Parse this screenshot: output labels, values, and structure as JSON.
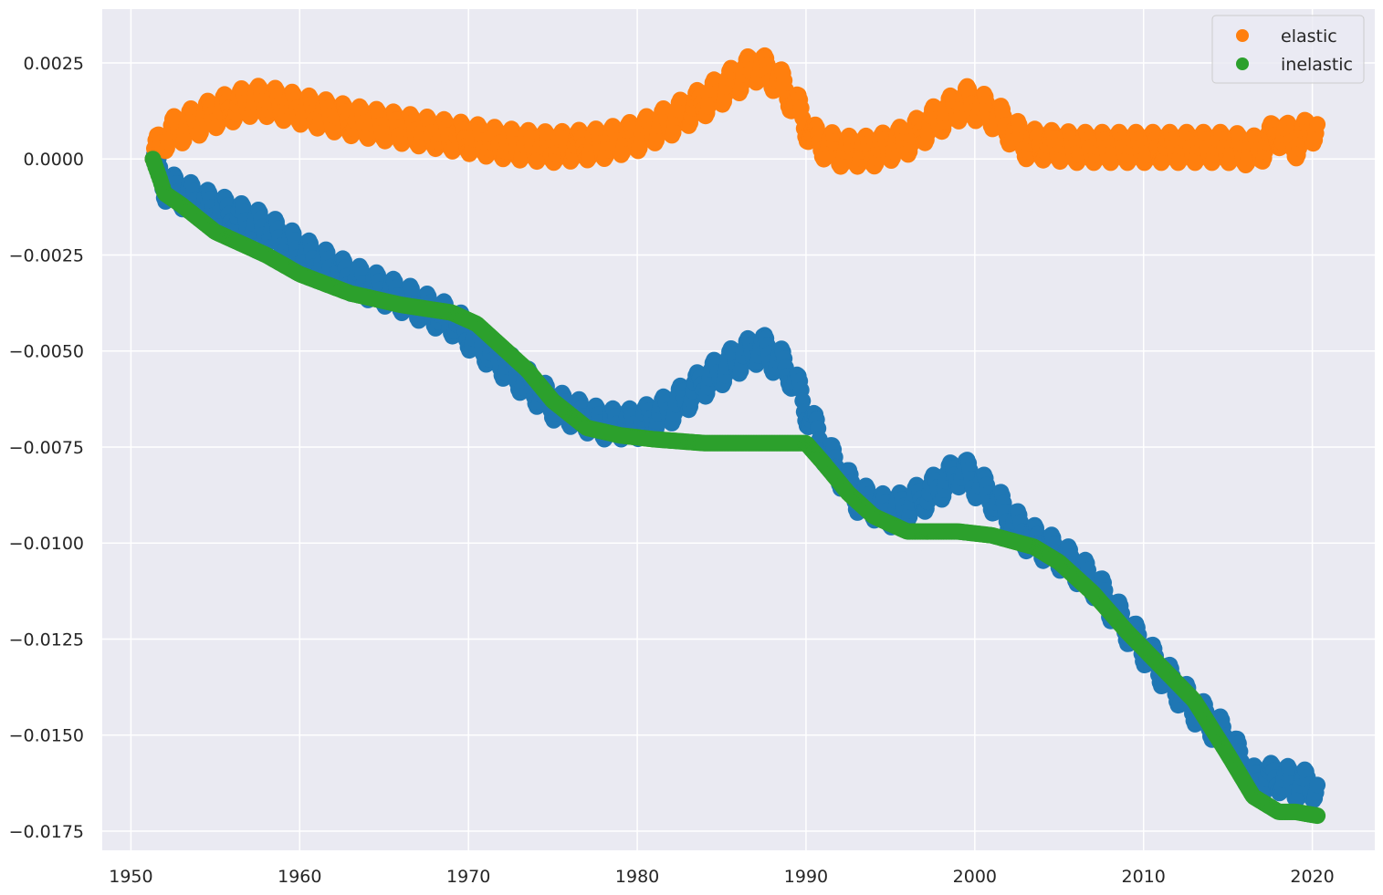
{
  "chart_data": {
    "type": "scatter",
    "title": "",
    "xlabel": "",
    "ylabel": "",
    "xlim": [
      1948.3,
      2023.7
    ],
    "ylim": [
      -0.018,
      0.0039
    ],
    "x_ticks": [
      "1950",
      "1960",
      "1970",
      "1980",
      "1990",
      "2000",
      "2010",
      "2020"
    ],
    "y_ticks": [
      "0.0025",
      "0.0000",
      "−0.0025",
      "−0.0050",
      "−0.0075",
      "−0.0100",
      "−0.0125",
      "−0.0150",
      "−0.0175"
    ],
    "y_tick_values": [
      0.0025,
      0.0,
      -0.0025,
      -0.005,
      -0.0075,
      -0.01,
      -0.0125,
      -0.015,
      -0.0175
    ],
    "x_tick_values": [
      1950,
      1960,
      1970,
      1980,
      1990,
      2000,
      2010,
      2020
    ],
    "grid": true,
    "background": "#eaeaf2",
    "legend_position": "top-right",
    "seasonal_amplitude": 0.0008,
    "series": [
      {
        "name": "",
        "color": "#1f77b4",
        "x": [
          1951.3,
          1952,
          1955,
          1958,
          1960,
          1963,
          1966,
          1969,
          1972,
          1975,
          1978,
          1980,
          1982,
          1984,
          1986,
          1987.3,
          1989,
          1991,
          1993,
          1995,
          1997,
          1999.2,
          2001,
          2003,
          2005,
          2007,
          2009,
          2011,
          2013,
          2015,
          2016.5,
          2018,
          2019,
          2020.3
        ],
        "y": [
          0.0,
          -0.0007,
          -0.0013,
          -0.0018,
          -0.0024,
          -0.0031,
          -0.0036,
          -0.0042,
          -0.0053,
          -0.0064,
          -0.0069,
          -0.0069,
          -0.0065,
          -0.0058,
          -0.0052,
          -0.0049,
          -0.0055,
          -0.0075,
          -0.0088,
          -0.0092,
          -0.0088,
          -0.0081,
          -0.0088,
          -0.0098,
          -0.0103,
          -0.011,
          -0.0122,
          -0.0133,
          -0.0143,
          -0.0151,
          -0.0162,
          -0.0161,
          -0.0163,
          -0.0163
        ]
      },
      {
        "name": "elastic",
        "color": "#ff7f0e",
        "x": [
          1951.3,
          1952,
          1953,
          1955,
          1957,
          1958,
          1960,
          1963,
          1966,
          1969,
          1972,
          1975,
          1978,
          1980,
          1982,
          1984,
          1986,
          1987,
          1988,
          1989,
          1990.5,
          1992,
          1994,
          1996,
          1998,
          1999.5,
          2001,
          2003,
          2006,
          2009,
          2012,
          2015,
          2016.7,
          2018,
          2019,
          2020.3
        ],
        "y": [
          0.0,
          0.0006,
          0.0008,
          0.0012,
          0.0015,
          0.0015,
          0.0013,
          0.001,
          0.0008,
          0.0006,
          0.0004,
          0.0003,
          0.0004,
          0.0006,
          0.001,
          0.0015,
          0.0021,
          0.0024,
          0.0022,
          0.0017,
          0.0005,
          0.0002,
          0.0002,
          0.0005,
          0.0011,
          0.0015,
          0.0012,
          0.0004,
          0.0003,
          0.0003,
          0.0003,
          0.0003,
          0.0002,
          0.0007,
          0.0004,
          0.0009
        ]
      },
      {
        "name": "inelastic",
        "color": "#2ca02c",
        "x": [
          1951.3,
          1951.7,
          1952,
          1953,
          1955,
          1958,
          1960,
          1963,
          1966,
          1969,
          1970.5,
          1972,
          1973.5,
          1975,
          1977,
          1979,
          1981,
          1984,
          1988,
          1990,
          1991,
          1992.5,
          1994,
          1996,
          1999,
          2001,
          2003.5,
          2005,
          2007,
          2009,
          2011,
          2013,
          2015,
          2016.5,
          2018,
          2019,
          2020.3
        ],
        "y": [
          0.0,
          -0.0005,
          -0.0009,
          -0.0012,
          -0.0019,
          -0.0025,
          -0.003,
          -0.0035,
          -0.0038,
          -0.004,
          -0.0043,
          -0.0049,
          -0.0055,
          -0.0063,
          -0.007,
          -0.0072,
          -0.0073,
          -0.0074,
          -0.0074,
          -0.0074,
          -0.0079,
          -0.0087,
          -0.0093,
          -0.0097,
          -0.0097,
          -0.0098,
          -0.0101,
          -0.0105,
          -0.0113,
          -0.0123,
          -0.0132,
          -0.0141,
          -0.0155,
          -0.0166,
          -0.017,
          -0.017,
          -0.0171
        ]
      }
    ]
  },
  "legend": {
    "items": [
      {
        "label": "elastic",
        "color": "#ff7f0e"
      },
      {
        "label": "inelastic",
        "color": "#2ca02c"
      }
    ]
  }
}
